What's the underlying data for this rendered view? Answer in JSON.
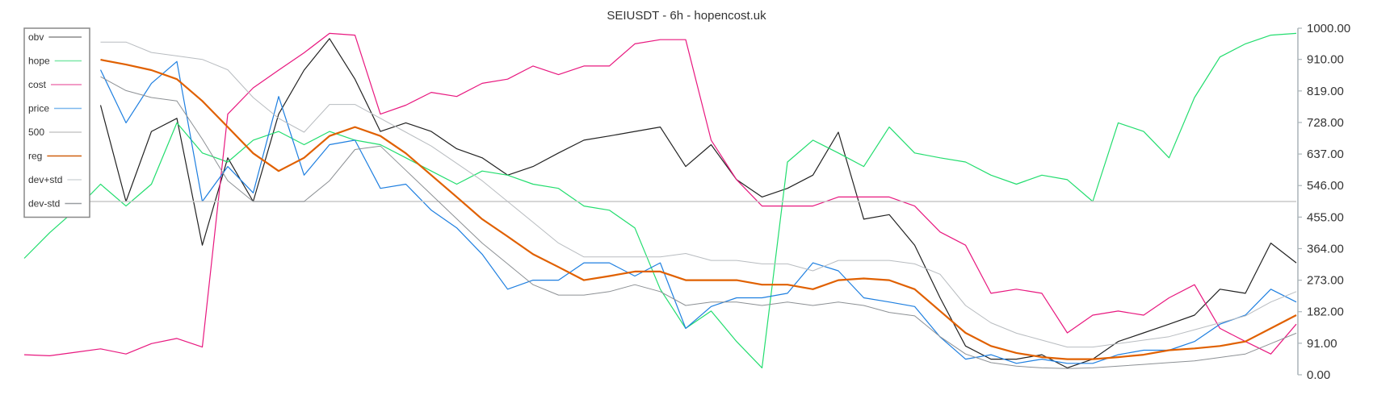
{
  "chart_data": {
    "type": "line",
    "title": "SEIUSDT - 6h - hopencost.uk",
    "xlabel": "",
    "ylabel": "",
    "ylim": [
      0,
      1000
    ],
    "yticks": [
      "0.00",
      "91.00",
      "182.00",
      "273.00",
      "364.00",
      "455.00",
      "546.00",
      "637.00",
      "728.00",
      "819.00",
      "910.00",
      "1000.00"
    ],
    "ytick_values": [
      0,
      91,
      182,
      273,
      364,
      455,
      546,
      637,
      728,
      819,
      910,
      1000
    ],
    "y_axis_side": "right",
    "grid": false,
    "legend_placement": "top-left",
    "x": [
      0,
      1,
      2,
      3,
      4,
      5,
      6,
      7,
      8,
      9,
      10,
      11,
      12,
      13,
      14,
      15,
      16,
      17,
      18,
      19,
      20,
      21,
      22,
      23,
      24,
      25,
      26,
      27,
      28,
      29,
      30,
      31,
      32,
      33,
      34,
      35,
      36,
      37,
      38,
      39,
      40,
      41,
      42,
      43,
      44,
      45,
      46,
      47,
      48,
      49,
      50
    ],
    "series": [
      {
        "name": "obv",
        "color": "#222222",
        "legend_color": "#8a8a8a",
        "width": 1.2,
        "values": [
          null,
          null,
          null,
          778,
          500,
          702,
          740,
          374,
          626,
          500,
          752,
          879,
          970,
          853,
          702,
          727,
          702,
          652,
          626,
          576,
          601,
          640,
          677,
          689,
          702,
          715,
          601,
          664,
          563,
          513,
          538,
          576,
          700,
          449,
          462,
          374,
          222,
          83,
          45,
          45,
          58,
          20,
          45,
          96,
          121,
          146,
          172,
          247,
          235,
          380,
          323
        ]
      },
      {
        "name": "hope",
        "color": "#22dd6e",
        "legend_color": "#7ee8a8",
        "width": 1.2,
        "values": [
          336,
          410,
          475,
          550,
          487,
          550,
          727,
          640,
          614,
          677,
          702,
          664,
          702,
          677,
          664,
          626,
          588,
          550,
          588,
          576,
          550,
          538,
          487,
          475,
          424,
          247,
          134,
          184,
          96,
          20,
          614,
          677,
          640,
          601,
          715,
          640,
          626,
          614,
          576,
          550,
          576,
          563,
          500,
          727,
          702,
          626,
          800,
          917,
          955,
          980,
          985
        ]
      },
      {
        "name": "cost",
        "color": "#e8187f",
        "legend_color": "#ee7cb4",
        "width": 1.2,
        "values": [
          58,
          55,
          65,
          75,
          60,
          90,
          105,
          80,
          752,
          828,
          879,
          929,
          985,
          980,
          752,
          778,
          815,
          803,
          841,
          853,
          891,
          866,
          891,
          891,
          955,
          967,
          967,
          677,
          563,
          487,
          487,
          487,
          513,
          513,
          513,
          487,
          412,
          374,
          235,
          247,
          235,
          121,
          172,
          184,
          172,
          222,
          260,
          134,
          96,
          60,
          146
        ]
      },
      {
        "name": "price",
        "color": "#1e7fe0",
        "legend_color": "#7cb8ee",
        "width": 1.2,
        "values": [
          null,
          null,
          null,
          880,
          727,
          841,
          904,
          500,
          601,
          525,
          803,
          576,
          664,
          677,
          538,
          550,
          475,
          424,
          348,
          247,
          273,
          273,
          323,
          323,
          285,
          323,
          134,
          197,
          222,
          222,
          235,
          323,
          300,
          222,
          210,
          197,
          109,
          45,
          58,
          33,
          45,
          33,
          33,
          58,
          71,
          71,
          96,
          146,
          172,
          247,
          210
        ]
      },
      {
        "name": "500",
        "color": "#c8c8c8",
        "legend_color": "#c8c8c8",
        "width": 1.5,
        "values": [
          500,
          500,
          500,
          500,
          500,
          500,
          500,
          500,
          500,
          500,
          500,
          500,
          500,
          500,
          500,
          500,
          500,
          500,
          500,
          500,
          500,
          500,
          500,
          500,
          500,
          500,
          500,
          500,
          500,
          500,
          500,
          500,
          500,
          500,
          500,
          500,
          500,
          500,
          500,
          500,
          500,
          500,
          500,
          500,
          500,
          500,
          500,
          500,
          500,
          500,
          500
        ]
      },
      {
        "name": "reg",
        "color": "#e06000",
        "legend_color": "#d06010",
        "width": 2.2,
        "values": [
          null,
          null,
          null,
          909,
          895,
          879,
          853,
          790,
          715,
          639,
          588,
          626,
          689,
          715,
          689,
          639,
          576,
          513,
          449,
          399,
          348,
          311,
          273,
          285,
          298,
          298,
          273,
          273,
          273,
          260,
          260,
          247,
          273,
          278,
          273,
          247,
          184,
          121,
          83,
          63,
          51,
          45,
          45,
          51,
          58,
          71,
          76,
          83,
          96,
          134,
          172
        ]
      },
      {
        "name": "dev+std",
        "color": "#b8bcc0",
        "legend_color": "#d4d8dc",
        "width": 1,
        "values": [
          null,
          null,
          null,
          960,
          960,
          930,
          920,
          910,
          880,
          800,
          740,
          700,
          780,
          780,
          740,
          700,
          660,
          610,
          560,
          500,
          440,
          380,
          340,
          340,
          340,
          340,
          350,
          330,
          330,
          320,
          320,
          300,
          330,
          330,
          330,
          320,
          290,
          200,
          150,
          120,
          100,
          80,
          80,
          90,
          100,
          110,
          130,
          150,
          170,
          210,
          240
        ]
      },
      {
        "name": "dev-std",
        "color": "#8c9094",
        "legend_color": "#9a9ea2",
        "width": 1,
        "values": [
          null,
          null,
          null,
          860,
          820,
          800,
          790,
          680,
          560,
          500,
          500,
          500,
          560,
          650,
          660,
          590,
          520,
          450,
          380,
          320,
          260,
          230,
          230,
          240,
          260,
          240,
          200,
          210,
          210,
          200,
          210,
          200,
          210,
          200,
          180,
          170,
          110,
          60,
          35,
          25,
          20,
          18,
          20,
          25,
          30,
          35,
          40,
          50,
          60,
          90,
          120
        ]
      }
    ]
  }
}
